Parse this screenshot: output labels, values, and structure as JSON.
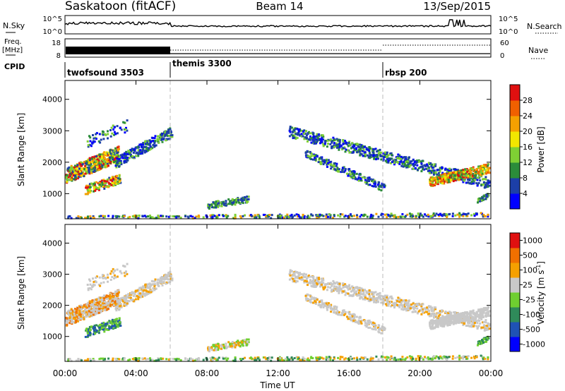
{
  "header": {
    "site": "Saskatoon (fitACF)",
    "beam": "Beam 14",
    "date": "13/Sep/2015"
  },
  "top_panels": {
    "nsky_label": "N.Sky",
    "nsky_ticks": [
      "10^5",
      "10^0"
    ],
    "nsearch_label": "N.Search",
    "nsearch_ticks": [
      "10^5",
      "10^0"
    ],
    "freq_label": "Freq.",
    "freq_unit": "[MHz]",
    "freq_ticks": [
      "18",
      "8"
    ],
    "nave_label": "Nave",
    "nave_ticks": [
      "60",
      "0"
    ],
    "cpid_label": "CPID",
    "cpid_segments": [
      {
        "name": "twofsound 3503",
        "start_hour": 0
      },
      {
        "name": "themis 3300",
        "start_hour": 6
      },
      {
        "name": "rbsp 200",
        "start_hour": 18
      }
    ]
  },
  "power_colorbar": {
    "label": "Power [dB]",
    "ticks": [
      "28",
      "24",
      "20",
      "16",
      "12",
      "8",
      "4"
    ],
    "colors": [
      "#0000ff",
      "#1c3fa8",
      "#2b8c3a",
      "#7fd034",
      "#f2e600",
      "#f5a000",
      "#f06000",
      "#e01010"
    ]
  },
  "velocity_colorbar": {
    "label": "Velocity [m s",
    "label_sup": "-1",
    "label_close": "]",
    "ticks": [
      "1000",
      "500",
      "100",
      "25",
      "-25",
      "-100",
      "-500",
      "-1000"
    ],
    "colors": [
      "#0000ff",
      "#1f52b5",
      "#2f8a5a",
      "#6fcf30",
      "#c8c8c8",
      "#f5a000",
      "#f07000",
      "#e01010"
    ]
  },
  "chart_data": [
    {
      "type": "heatmap",
      "quantity": "power",
      "xlabel": "",
      "ylabel": "Slant Range [km]",
      "xlim_hours": [
        0,
        24
      ],
      "ylim_km": [
        200,
        4600
      ],
      "y_ticks": [
        "4000",
        "3000",
        "2000",
        "1000"
      ],
      "x_ticks": [
        "00:00",
        "04:00",
        "08:00",
        "12:00",
        "16:00",
        "20:00",
        "00:00"
      ]
    },
    {
      "type": "heatmap",
      "quantity": "velocity",
      "xlabel": "Time UT",
      "ylabel": "Slant Range [km]",
      "xlim_hours": [
        0,
        24
      ],
      "ylim_km": [
        200,
        4600
      ],
      "y_ticks": [
        "4000",
        "3000",
        "2000",
        "1000"
      ],
      "x_ticks": [
        "00:00",
        "04:00",
        "08:00",
        "12:00",
        "16:00",
        "20:00",
        "00:00"
      ]
    }
  ]
}
